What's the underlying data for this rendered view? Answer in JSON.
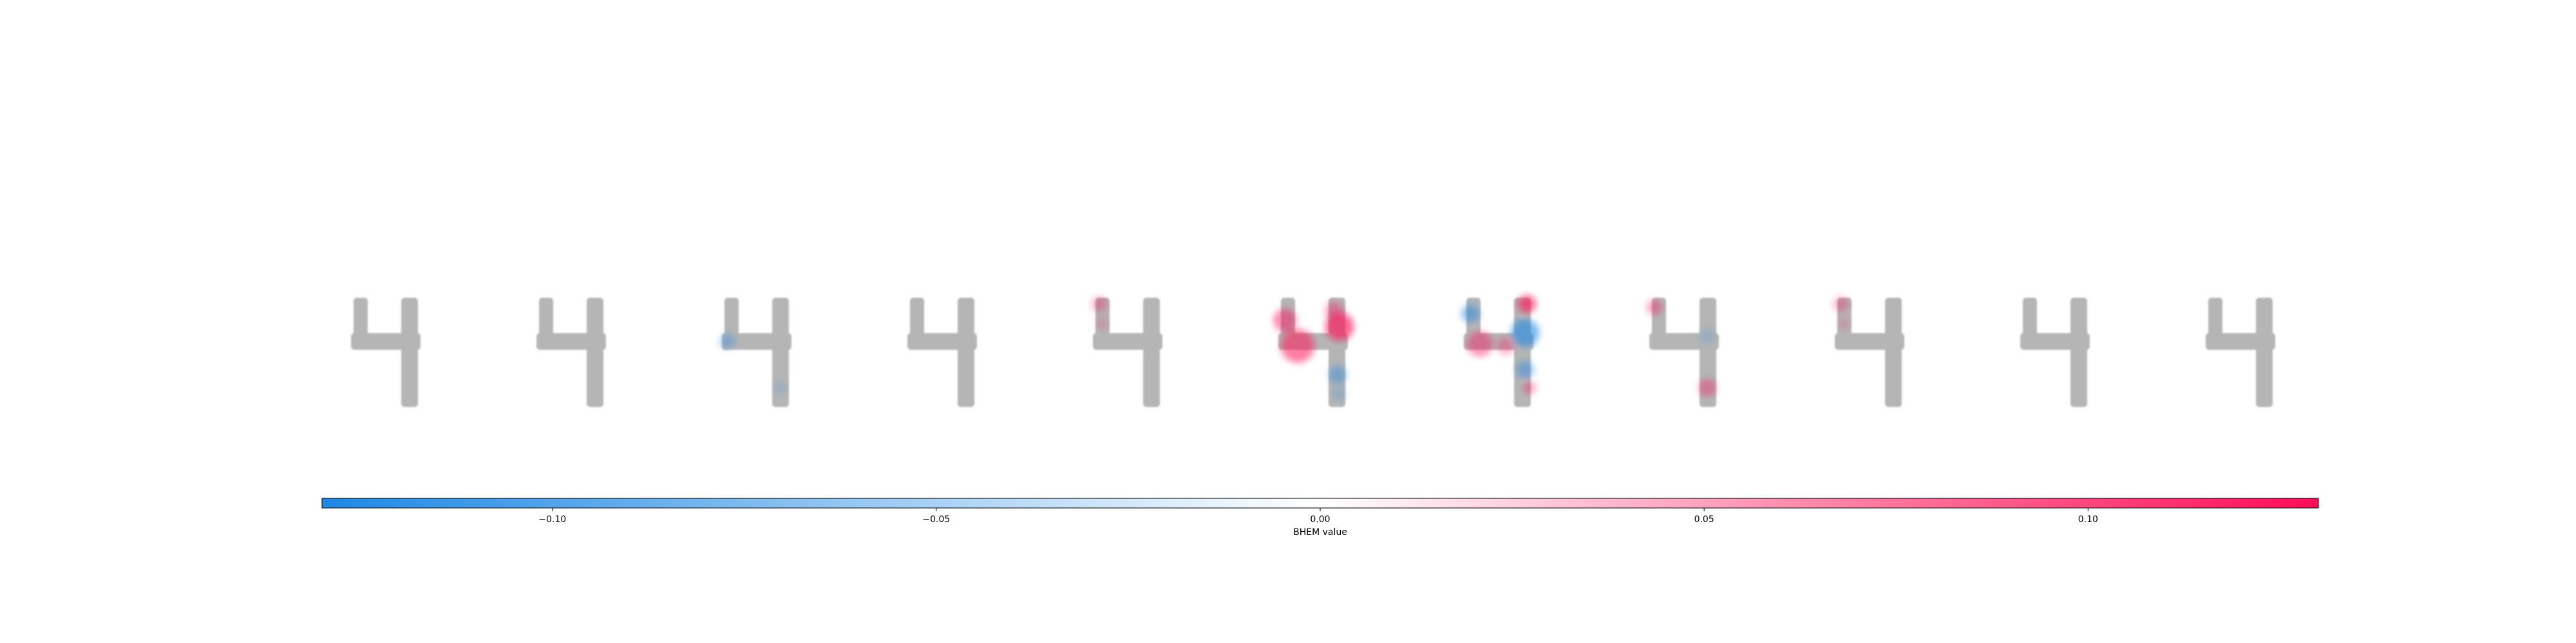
{
  "chart_data": {
    "type": "image_grid_with_colorbar",
    "panels": [
      {
        "name": "digit-4",
        "overlay": "none"
      },
      {
        "name": "digit-4",
        "overlay": "none"
      },
      {
        "name": "digit-4",
        "overlay": "faint-blue"
      },
      {
        "name": "digit-4",
        "overlay": "none"
      },
      {
        "name": "digit-4",
        "overlay": "faint-red"
      },
      {
        "name": "digit-4",
        "overlay": "strong-red"
      },
      {
        "name": "digit-4",
        "overlay": "mixed-red-blue"
      },
      {
        "name": "digit-4",
        "overlay": "faint-mixed"
      },
      {
        "name": "digit-4",
        "overlay": "faint-red"
      },
      {
        "name": "digit-4",
        "overlay": "none"
      },
      {
        "name": "digit-4",
        "overlay": "none"
      }
    ],
    "colorbar": {
      "orientation": "horizontal",
      "range": [
        -0.13,
        0.13
      ],
      "colors": [
        "#1E88E5",
        "#ffffff",
        "#ff0d57"
      ],
      "ticks": [
        -0.1,
        -0.05,
        0.0,
        0.05,
        0.1
      ],
      "tick_labels": [
        "−0.10",
        "−0.05",
        "0.00",
        "0.05",
        "0.10"
      ],
      "xlabel": "BHEM value"
    }
  }
}
